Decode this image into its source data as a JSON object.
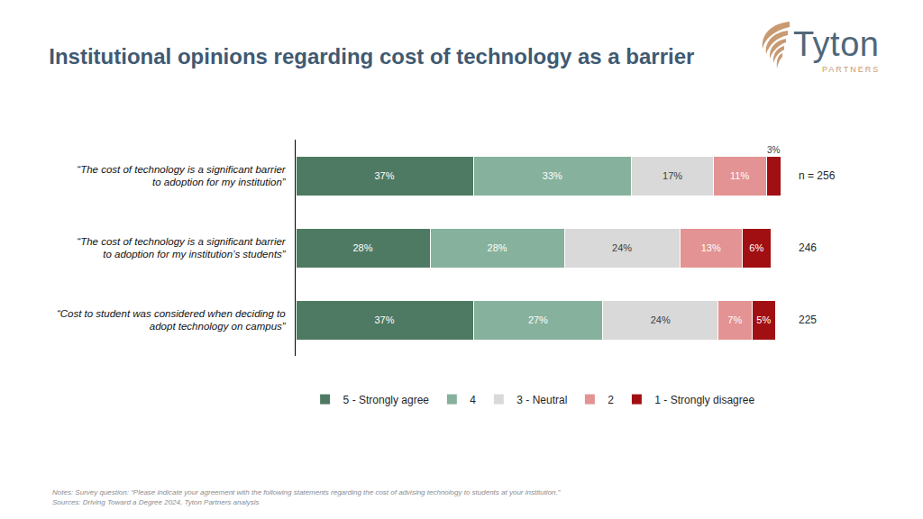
{
  "chart_data": {
    "type": "bar",
    "title": "Institutional opinions regarding cost of technology as a barrier",
    "orientation": "horizontal",
    "stacked": true,
    "data_labels": true,
    "tick_labels": "y",
    "grid": false,
    "legend": "bottom",
    "xlim": [
      0,
      101
    ],
    "categories": [
      "“The cost of technology is a significant barrier to adoption for my institution”",
      "“The cost of technology is a significant barrier to adoption for my institution’s students”",
      "“Cost to student was considered when deciding to adopt technology on campus”"
    ],
    "n_labels": [
      "n = 256",
      "246",
      "225"
    ],
    "series": [
      {
        "name": "5 - Strongly agree",
        "color": "#4e7a64",
        "values": [
          37,
          28,
          37
        ],
        "value_labels": [
          "37%",
          "28%",
          "37%"
        ]
      },
      {
        "name": "4",
        "color": "#86b19c",
        "values": [
          33,
          28,
          27
        ],
        "value_labels": [
          "33%",
          "28%",
          "27%"
        ]
      },
      {
        "name": "3 - Neutral",
        "color": "#d9d9d9",
        "values": [
          17,
          24,
          24
        ],
        "value_labels": [
          "17%",
          "24%",
          "24%"
        ]
      },
      {
        "name": "2",
        "color": "#e39393",
        "values": [
          11,
          13,
          7
        ],
        "value_labels": [
          "11%",
          "13%",
          "7%"
        ]
      },
      {
        "name": "1 - Strongly disagree",
        "color": "#a10f12",
        "values": [
          3,
          6,
          5
        ],
        "value_labels": [
          "3%",
          "6%",
          "5%"
        ]
      }
    ],
    "logo": {
      "name": "Tyton",
      "subtitle": "PARTNERS"
    },
    "notes": "Notes: Survey question: “Please indicate your agreement with the following statements regarding the cost of advising technology to students at your institution.”",
    "sources": "Sources: Driving Toward a Degree 2024, Tyton Partners analysis"
  }
}
